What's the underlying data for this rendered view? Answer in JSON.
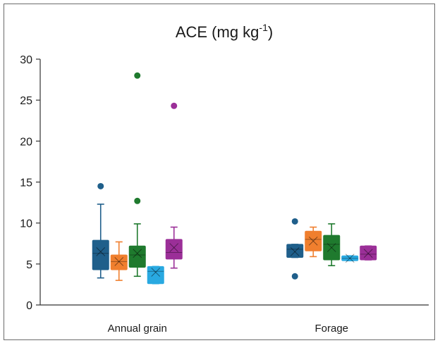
{
  "chart_data": {
    "type": "box",
    "title": "ACE (mg kg",
    "title_superscript": "-1",
    "title_suffix": ")",
    "ylim": [
      0,
      30
    ],
    "yticks": [
      "0",
      "5",
      "10",
      "15",
      "20",
      "25",
      "30"
    ],
    "categories": [
      "Annual grain",
      "Forage"
    ],
    "grid": false,
    "series": [
      {
        "color": "#1f5f8b",
        "boxes": [
          {
            "category": "Annual grain",
            "min": 3.3,
            "q1": 4.3,
            "median": 6.3,
            "q3": 7.9,
            "max": 12.3,
            "mean": 6.5,
            "outliers": [
              14.5
            ]
          },
          {
            "category": "Forage",
            "min": 5.8,
            "q1": 5.8,
            "median": 6.8,
            "q3": 7.4,
            "max": 7.4,
            "mean": 6.5,
            "outliers": [
              10.2,
              3.5
            ]
          }
        ]
      },
      {
        "color": "#f07f2e",
        "boxes": [
          {
            "category": "Annual grain",
            "min": 3.0,
            "q1": 4.3,
            "median": 5.3,
            "q3": 6.1,
            "max": 7.7,
            "mean": 5.3,
            "outliers": []
          },
          {
            "category": "Forage",
            "min": 5.9,
            "q1": 6.6,
            "median": 8.0,
            "q3": 9.0,
            "max": 9.5,
            "mean": 7.8,
            "outliers": []
          }
        ]
      },
      {
        "color": "#1f7a2e",
        "boxes": [
          {
            "category": "Annual grain",
            "min": 3.5,
            "q1": 4.6,
            "median": 6.1,
            "q3": 7.2,
            "max": 9.9,
            "mean": 6.3,
            "outliers": [
              12.7,
              28.0
            ]
          },
          {
            "category": "Forage",
            "min": 4.8,
            "q1": 5.5,
            "median": 7.4,
            "q3": 8.5,
            "max": 9.9,
            "mean": 7.0,
            "outliers": []
          }
        ]
      },
      {
        "color": "#29a9e1",
        "boxes": [
          {
            "category": "Annual grain",
            "min": 2.6,
            "q1": 2.6,
            "median": 4.1,
            "q3": 4.7,
            "max": 4.7,
            "mean": 4.0,
            "outliers": []
          },
          {
            "category": "Forage",
            "min": 5.4,
            "q1": 5.4,
            "median": 5.7,
            "q3": 6.0,
            "max": 6.0,
            "mean": 5.7,
            "outliers": []
          }
        ]
      },
      {
        "color": "#9b2f98",
        "boxes": [
          {
            "category": "Annual grain",
            "min": 4.5,
            "q1": 5.6,
            "median": 6.4,
            "q3": 8.0,
            "max": 9.5,
            "mean": 7.0,
            "outliers": [
              24.3
            ]
          },
          {
            "category": "Forage",
            "min": 5.5,
            "q1": 5.5,
            "median": 6.2,
            "q3": 7.2,
            "max": 7.2,
            "mean": 6.3,
            "outliers": []
          }
        ]
      }
    ]
  }
}
